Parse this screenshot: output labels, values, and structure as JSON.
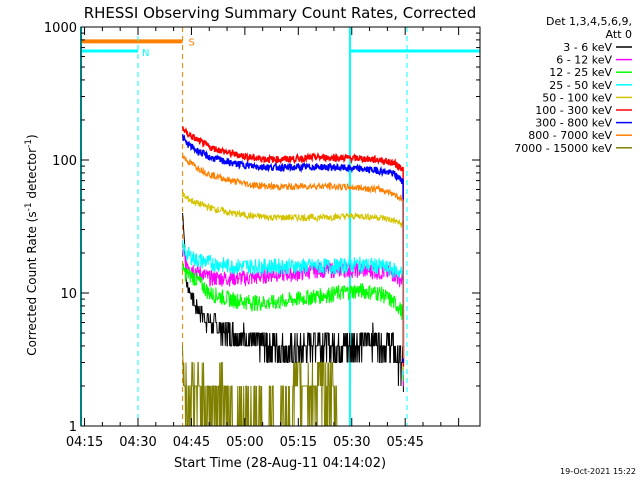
{
  "chart_data": {
    "type": "line",
    "title": "RHESSI Observing Summary Count Rates, Corrected",
    "xlabel": "Start Time (28-Aug-11 04:14:02)",
    "ylabel_main": "Corrected Count Rate (s",
    "ylabel_sup1": "-1",
    "ylabel_mid": " detector",
    "ylabel_sup2": "-1",
    "ylabel_end": ")",
    "yscale": "log",
    "ylim": [
      1,
      1000
    ],
    "xlim_min": [
      0,
      112
    ],
    "yticks": [
      {
        "v": 1,
        "label": "1"
      },
      {
        "v": 10,
        "label": "10"
      },
      {
        "v": 100,
        "label": "100"
      },
      {
        "v": 1000,
        "label": "1000"
      }
    ],
    "xticks": [
      {
        "m": 1,
        "label": "04:15"
      },
      {
        "m": 16,
        "label": "04:30"
      },
      {
        "m": 31,
        "label": "04:45"
      },
      {
        "m": 46,
        "label": "05:00"
      },
      {
        "m": 61,
        "label": "05:15"
      },
      {
        "m": 76,
        "label": "05:30"
      },
      {
        "m": 91,
        "label": "05:45"
      }
    ],
    "legend_header": [
      "Det 1,3,4,5,6,9,",
      "Att 0"
    ],
    "legend_position": "right",
    "timestamp": "19-Oct-2021 15:22",
    "data_start_min": 28.5,
    "data_end_min": 90.5,
    "series": [
      {
        "name": "3 - 6 keV",
        "color": "#000000",
        "x": [
          28.5,
          29.5,
          32,
          36,
          42,
          48,
          54,
          60,
          66,
          72,
          76,
          82,
          87.8,
          89,
          90.5
        ],
        "y": [
          40,
          12,
          8,
          6,
          5,
          4.5,
          4,
          3.5,
          4.5,
          4,
          4,
          4.5,
          4,
          3,
          3
        ]
      },
      {
        "name": "6 - 12 keV",
        "color": "#ff00ff",
        "x": [
          28.5,
          29.5,
          32,
          36,
          42,
          48,
          54,
          60,
          66,
          72,
          78,
          84,
          87.8,
          89,
          90.5
        ],
        "y": [
          20,
          17,
          15,
          13,
          13,
          13,
          14,
          14,
          15,
          15,
          15,
          14.5,
          14,
          13,
          12.5
        ]
      },
      {
        "name": "12 - 25 keV",
        "color": "#00ff00",
        "x": [
          28.5,
          29.5,
          32,
          36,
          42,
          48,
          54,
          60,
          66,
          72,
          78,
          84,
          87.8,
          89,
          90.5
        ],
        "y": [
          15,
          14,
          13,
          10,
          9,
          8.5,
          8.5,
          9,
          9.5,
          10,
          10.5,
          10,
          8.5,
          8,
          7
        ]
      },
      {
        "name": "25 - 50 keV",
        "color": "#00ffff",
        "x": [
          28.5,
          29.5,
          32,
          36,
          42,
          48,
          54,
          60,
          66,
          72,
          78,
          84,
          87.8,
          89,
          90.5
        ],
        "y": [
          22,
          20,
          18,
          17,
          16,
          16,
          16,
          16,
          16,
          16,
          16.5,
          16,
          15,
          14.5,
          14
        ]
      },
      {
        "name": "50 - 100 keV",
        "color": "#d4c400",
        "x": [
          28.5,
          29.5,
          32,
          36,
          42,
          48,
          54,
          60,
          66,
          72,
          78,
          84,
          87.8,
          89,
          90.5
        ],
        "y": [
          55,
          52,
          48,
          44,
          40,
          38,
          37,
          37,
          37,
          37.5,
          38,
          37,
          35,
          34,
          32
        ]
      },
      {
        "name": "100 - 300 keV",
        "color": "#ff0000",
        "x": [
          28.5,
          29.5,
          32,
          36,
          42,
          48,
          54,
          60,
          66,
          72,
          78,
          84,
          87.8,
          89,
          90.5
        ],
        "y": [
          175,
          160,
          145,
          125,
          112,
          104,
          101,
          102,
          105,
          104,
          103,
          100,
          95,
          90,
          86
        ]
      },
      {
        "name": "300 - 800 keV",
        "color": "#0000ff",
        "x": [
          28.5,
          29.5,
          32,
          36,
          42,
          48,
          54,
          60,
          66,
          72,
          78,
          84,
          87.8,
          89,
          90.5
        ],
        "y": [
          150,
          135,
          120,
          105,
          95,
          90,
          88,
          88,
          89,
          88,
          86,
          83,
          79,
          74,
          70
        ]
      },
      {
        "name": "800 - 7000 keV",
        "color": "#ff8000",
        "x": [
          28.5,
          29.5,
          32,
          36,
          42,
          48,
          54,
          60,
          66,
          72,
          78,
          84,
          87.8,
          89,
          90.5
        ],
        "y": [
          110,
          100,
          90,
          78,
          70,
          65,
          63,
          63,
          64,
          63,
          62,
          60,
          56,
          53,
          50
        ]
      },
      {
        "name": "7000 - 15000 keV",
        "color": "#808000",
        "x": [
          28.5,
          29.5,
          30,
          31,
          33,
          36,
          40,
          45,
          58,
          60,
          65,
          70,
          71,
          72
        ],
        "y": [
          3,
          2,
          1.5,
          2,
          2,
          1.5,
          2,
          1,
          1,
          2,
          2,
          2,
          1.5,
          1
        ]
      }
    ],
    "annotations": [
      {
        "label": "S",
        "color": "#ff8000"
      },
      {
        "label": "N",
        "color": "#00ffff"
      }
    ],
    "markers": {
      "attenuator_color": "#ff8000",
      "night_color": "#00ffff",
      "saa_start": 0,
      "saa_end": 28.5,
      "saa_level": 780,
      "night_seg1": [
        0,
        16
      ],
      "night_seg2": [
        75.5,
        112
      ],
      "night_level": 660,
      "night_lines": [
        0,
        16,
        75.5,
        91.5
      ],
      "saa_line": 28.5
    }
  }
}
